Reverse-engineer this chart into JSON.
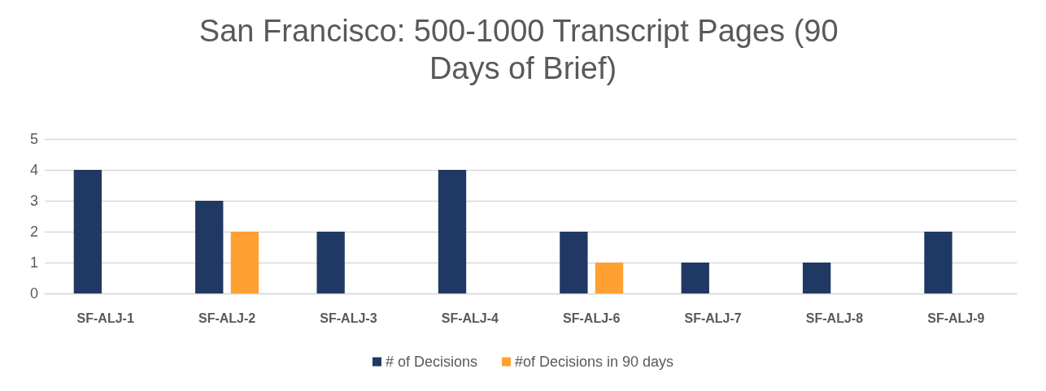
{
  "chart_data": {
    "type": "bar",
    "title": "San Francisco: 500-1000 Transcript Pages (90 Days of Brief)",
    "categories": [
      "SF-ALJ-1",
      "SF-ALJ-2",
      "SF-ALJ-3",
      "SF-ALJ-4",
      "SF-ALJ-6",
      "SF-ALJ-7",
      "SF-ALJ-8",
      "SF-ALJ-9"
    ],
    "series": [
      {
        "name": "# of Decisions",
        "color": "#203864",
        "values": [
          4,
          3,
          2,
          4,
          2,
          1,
          1,
          2
        ]
      },
      {
        "name": "#of Decisions in 90 days",
        "color": "#ffa033",
        "values": [
          0,
          2,
          0,
          0,
          1,
          0,
          0,
          0
        ]
      }
    ],
    "ylim": [
      0,
      5
    ],
    "yticks": [
      0,
      1,
      2,
      3,
      4,
      5
    ],
    "grid": "y",
    "legend": "bottom"
  }
}
